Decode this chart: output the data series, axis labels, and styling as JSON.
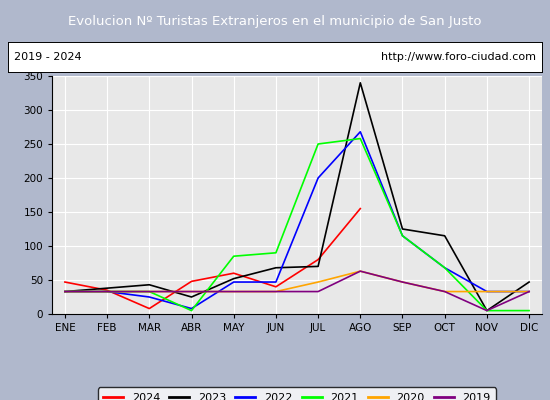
{
  "title": "Evolucion Nº Turistas Extranjeros en el municipio de San Justo",
  "subtitle_left": "2019 - 2024",
  "subtitle_right": "http://www.foro-ciudad.com",
  "title_bg": "#4472c4",
  "title_color": "white",
  "months": [
    "ENE",
    "FEB",
    "MAR",
    "ABR",
    "MAY",
    "JUN",
    "JUL",
    "AGO",
    "SEP",
    "OCT",
    "NOV",
    "DIC"
  ],
  "ylim": [
    0,
    350
  ],
  "yticks": [
    0,
    50,
    100,
    150,
    200,
    250,
    300,
    350
  ],
  "series": {
    "2024": {
      "color": "red",
      "data": [
        47,
        35,
        8,
        48,
        60,
        40,
        80,
        155,
        null,
        null,
        null,
        null
      ]
    },
    "2023": {
      "color": "black",
      "data": [
        33,
        38,
        43,
        25,
        52,
        68,
        70,
        340,
        125,
        115,
        5,
        47
      ]
    },
    "2022": {
      "color": "blue",
      "data": [
        33,
        33,
        25,
        8,
        47,
        47,
        200,
        268,
        115,
        68,
        33,
        33
      ]
    },
    "2021": {
      "color": "lime",
      "data": [
        33,
        33,
        33,
        5,
        85,
        90,
        250,
        258,
        115,
        68,
        5,
        5
      ]
    },
    "2020": {
      "color": "orange",
      "data": [
        33,
        33,
        33,
        33,
        33,
        33,
        47,
        63,
        47,
        33,
        33,
        33
      ]
    },
    "2019": {
      "color": "purple",
      "data": [
        33,
        33,
        33,
        33,
        33,
        33,
        33,
        63,
        47,
        33,
        5,
        33
      ]
    }
  },
  "legend_order": [
    "2024",
    "2023",
    "2022",
    "2021",
    "2020",
    "2019"
  ],
  "bg_color": "#b0b8cc",
  "plot_bg": "#e8e8e8"
}
